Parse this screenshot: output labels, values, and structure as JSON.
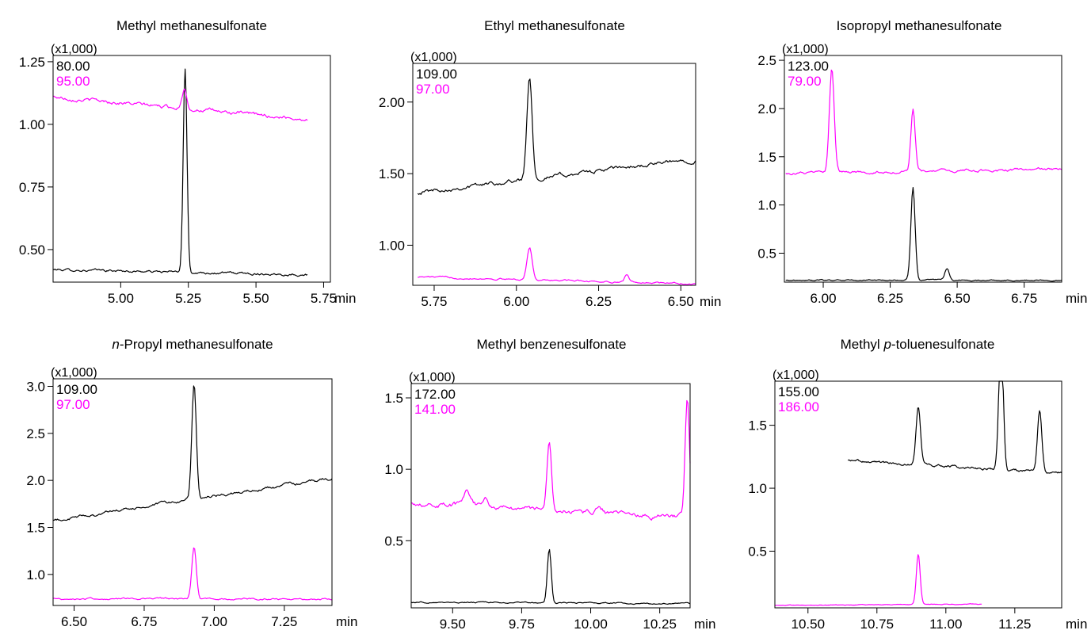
{
  "colors": {
    "black_trace": "#000000",
    "magenta_trace": "#ff00ff",
    "frame": "#000000"
  },
  "chart_data": [
    {
      "type": "line",
      "title_parts": [
        {
          "text": "Methyl methanesulfonate",
          "italic": false
        }
      ],
      "xlabel": "min",
      "yscale_label": "(x1,000)",
      "xlim": [
        4.75,
        5.775
      ],
      "ylim": [
        0.37,
        1.275
      ],
      "xticks": [
        5.0,
        5.25,
        5.5,
        5.75
      ],
      "yticks": [
        0.5,
        0.75,
        1.0,
        1.25
      ],
      "xdecimals": 2,
      "ydecimals": 2,
      "series": [
        {
          "name": "80.00",
          "color": "#000000",
          "xrange": [
            4.75,
            5.69
          ],
          "baseline": [
            0.42,
            0.4
          ],
          "noise": 0.004,
          "peaks": [
            {
              "x": 5.238,
              "h": 0.81,
              "w": 0.007
            }
          ]
        },
        {
          "name": "95.00",
          "color": "#ff00ff",
          "xrange": [
            4.75,
            5.69
          ],
          "baseline": [
            1.11,
            1.02
          ],
          "noise": 0.006,
          "peaks": [
            {
              "x": 5.235,
              "h": 0.08,
              "w": 0.009
            }
          ]
        }
      ]
    },
    {
      "type": "line",
      "title_parts": [
        {
          "text": "Ethyl methanesulfonate",
          "italic": false
        }
      ],
      "xlabel": "min",
      "yscale_label": "(x1,000)",
      "xlim": [
        5.685,
        6.545
      ],
      "ylim": [
        0.72,
        2.27
      ],
      "xticks": [
        5.75,
        6.0,
        6.25,
        6.5
      ],
      "yticks": [
        1.0,
        1.5,
        2.0
      ],
      "xdecimals": 2,
      "ydecimals": 2,
      "series": [
        {
          "name": "109.00",
          "color": "#000000",
          "xrange": [
            5.7,
            6.545
          ],
          "baseline": [
            1.37,
            1.6
          ],
          "noise": 0.012,
          "peaks": [
            {
              "x": 6.04,
              "h": 0.72,
              "w": 0.008
            }
          ]
        },
        {
          "name": "97.00",
          "color": "#ff00ff",
          "xrange": [
            5.7,
            6.545
          ],
          "baseline": [
            0.78,
            0.73
          ],
          "noise": 0.005,
          "peaks": [
            {
              "x": 6.04,
              "h": 0.22,
              "w": 0.008
            },
            {
              "x": 6.335,
              "h": 0.05,
              "w": 0.006
            }
          ]
        }
      ]
    },
    {
      "type": "line",
      "title_parts": [
        {
          "text": "Isopropyl methanesulfonate",
          "italic": false
        }
      ],
      "xlabel": "min",
      "yscale_label": "(x1,000)",
      "xlim": [
        5.855,
        6.89
      ],
      "ylim": [
        0.2,
        2.55
      ],
      "xticks": [
        6.0,
        6.25,
        6.5,
        6.75
      ],
      "yticks": [
        0.5,
        1.0,
        1.5,
        2.0,
        2.5
      ],
      "xdecimals": 2,
      "ydecimals": 1,
      "series": [
        {
          "name": "123.00",
          "color": "#000000",
          "xrange": [
            5.86,
            6.89
          ],
          "baseline": [
            0.22,
            0.22
          ],
          "noise": 0.005,
          "peaks": [
            {
              "x": 6.335,
              "h": 0.96,
              "w": 0.008
            },
            {
              "x": 6.462,
              "h": 0.12,
              "w": 0.008
            }
          ]
        },
        {
          "name": "79.00",
          "color": "#ff00ff",
          "xrange": [
            5.86,
            6.89
          ],
          "baseline": [
            1.33,
            1.37
          ],
          "noise": 0.012,
          "peaks": [
            {
              "x": 6.032,
              "h": 1.06,
              "w": 0.009
            },
            {
              "x": 6.335,
              "h": 0.64,
              "w": 0.008
            }
          ]
        }
      ]
    },
    {
      "type": "line",
      "title_parts": [
        {
          "text": "n",
          "italic": true
        },
        {
          "text": "-Propyl methanesulfonate",
          "italic": false
        }
      ],
      "xlabel": "min",
      "yscale_label": "(x1,000)",
      "xlim": [
        6.425,
        7.42
      ],
      "ylim": [
        0.67,
        3.08
      ],
      "xticks": [
        6.5,
        6.75,
        7.0,
        7.25
      ],
      "yticks": [
        1.0,
        1.5,
        2.0,
        2.5,
        3.0
      ],
      "xdecimals": 2,
      "ydecimals": 1,
      "series": [
        {
          "name": "109.00",
          "color": "#000000",
          "xrange": [
            6.425,
            7.42
          ],
          "baseline": [
            1.57,
            2.02
          ],
          "noise": 0.014,
          "peaks": [
            {
              "x": 6.928,
              "h": 1.23,
              "w": 0.008
            }
          ]
        },
        {
          "name": "97.00",
          "color": "#ff00ff",
          "xrange": [
            6.425,
            7.42
          ],
          "baseline": [
            0.74,
            0.74
          ],
          "noise": 0.008,
          "peaks": [
            {
              "x": 6.928,
              "h": 0.56,
              "w": 0.008
            }
          ]
        }
      ]
    },
    {
      "type": "line",
      "title_parts": [
        {
          "text": "Methyl benzenesulfonate",
          "italic": false
        }
      ],
      "xlabel": "min",
      "yscale_label": "(x1,000)",
      "xlim": [
        9.35,
        10.36
      ],
      "ylim": [
        0.03,
        1.6
      ],
      "xticks": [
        9.5,
        9.75,
        10.0,
        10.25
      ],
      "yticks": [
        0.5,
        1.0,
        1.5
      ],
      "xdecimals": 2,
      "ydecimals": 1,
      "series": [
        {
          "name": "172.00",
          "color": "#000000",
          "xrange": [
            9.35,
            10.36
          ],
          "baseline": [
            0.07,
            0.06
          ],
          "noise": 0.004,
          "peaks": [
            {
              "x": 9.85,
              "h": 0.38,
              "w": 0.007
            }
          ]
        },
        {
          "name": "141.00",
          "color": "#ff00ff",
          "xrange": [
            9.35,
            10.36
          ],
          "baseline": [
            0.77,
            0.66
          ],
          "noise": 0.015,
          "peaks": [
            {
              "x": 9.55,
              "h": 0.09,
              "w": 0.012
            },
            {
              "x": 9.62,
              "h": 0.05,
              "w": 0.01
            },
            {
              "x": 9.85,
              "h": 0.47,
              "w": 0.008
            },
            {
              "x": 10.03,
              "h": 0.05,
              "w": 0.012
            },
            {
              "x": 10.35,
              "h": 0.85,
              "w": 0.008
            }
          ]
        }
      ]
    },
    {
      "type": "line",
      "title_parts": [
        {
          "text": "Methyl ",
          "italic": false
        },
        {
          "text": "p",
          "italic": true
        },
        {
          "text": "-toluenesulfonate",
          "italic": false
        }
      ],
      "xlabel": "min",
      "yscale_label": "(x1,000)",
      "xlim": [
        10.38,
        11.42
      ],
      "ylim": [
        0.05,
        1.85
      ],
      "xticks": [
        10.5,
        10.75,
        11.0,
        11.25
      ],
      "yticks": [
        0.5,
        1.0,
        1.5
      ],
      "xdecimals": 2,
      "ydecimals": 1,
      "series": [
        {
          "name": "155.00",
          "color": "#000000",
          "xrange": [
            10.645,
            11.42
          ],
          "baseline": [
            1.22,
            1.12
          ],
          "noise": 0.008,
          "peaks": [
            {
              "x": 10.9,
              "h": 0.46,
              "w": 0.008
            },
            {
              "x": 11.2,
              "h": 1.1,
              "w": 0.008
            },
            {
              "x": 11.34,
              "h": 0.48,
              "w": 0.008
            }
          ]
        },
        {
          "name": "186.00",
          "color": "#ff00ff",
          "xrange": [
            10.38,
            11.13
          ],
          "baseline": [
            0.07,
            0.08
          ],
          "noise": 0.002,
          "peaks": [
            {
              "x": 10.9,
              "h": 0.4,
              "w": 0.007
            }
          ]
        }
      ]
    }
  ]
}
